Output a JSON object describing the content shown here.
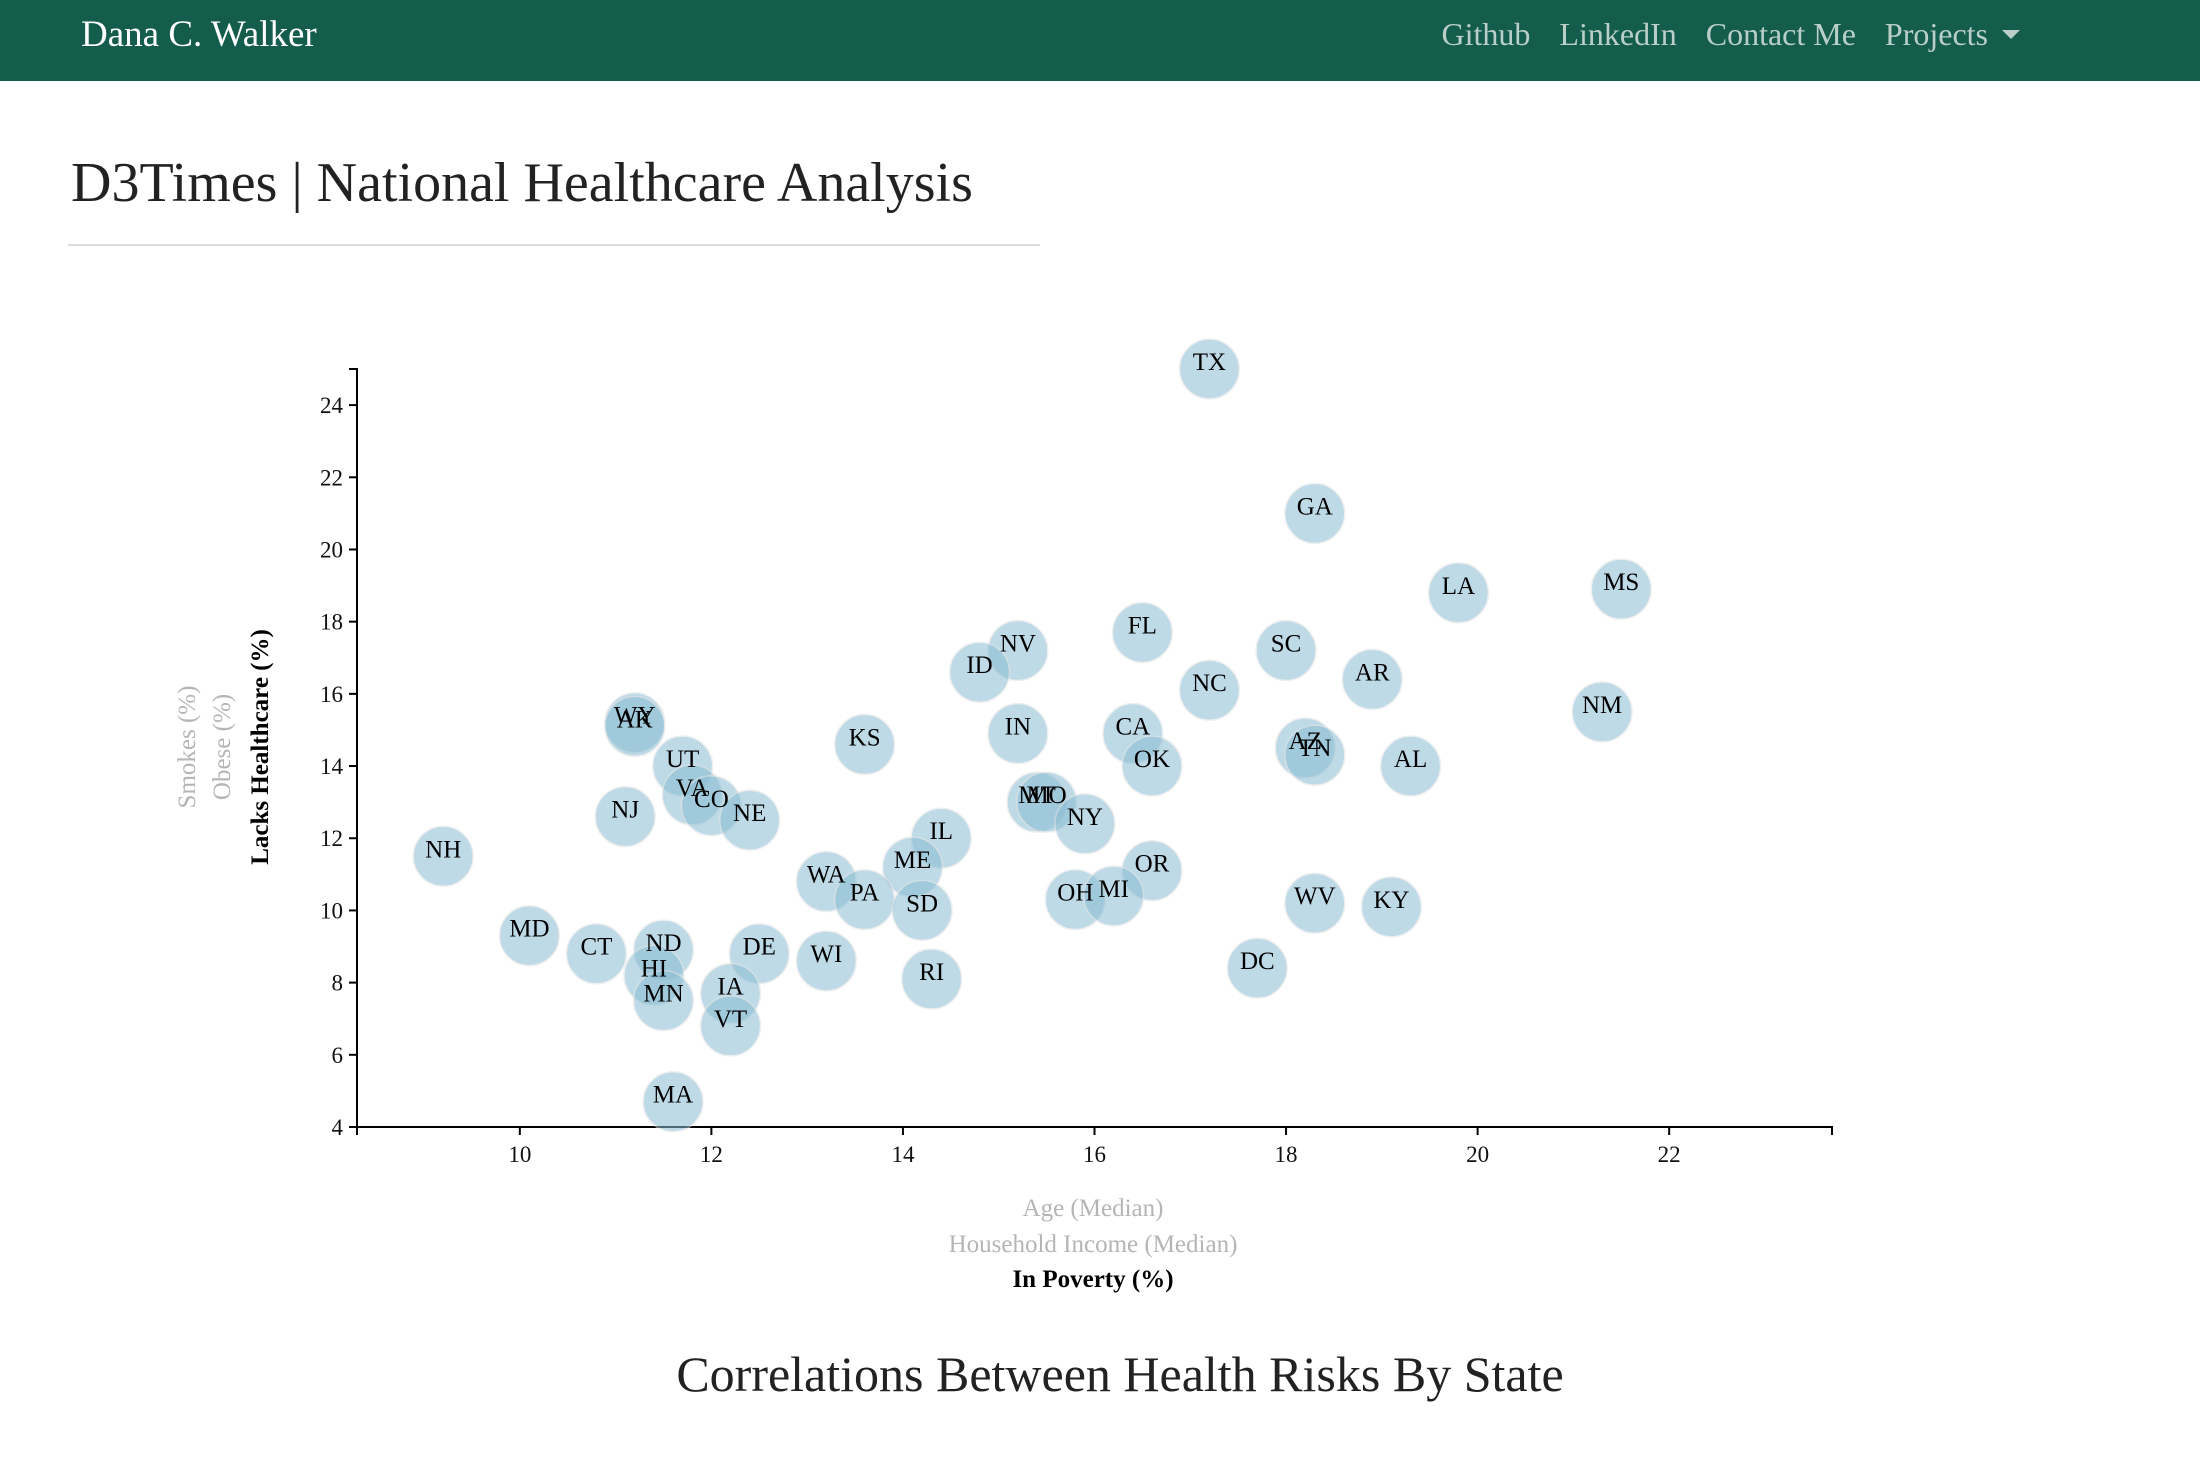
{
  "nav": {
    "brand": "Dana C. Walker",
    "links": [
      "Github",
      "LinkedIn",
      "Contact Me",
      "Projects"
    ]
  },
  "page": {
    "title": "D3Times | National Healthcare Analysis",
    "subtitle": "Correlations Between Health Risks By State"
  },
  "chart_data": {
    "type": "scatter",
    "title": "",
    "xlabels": [
      "Age (Median)",
      "Household Income (Median)",
      "In Poverty (%)"
    ],
    "ylabels": [
      "Smokes (%)",
      "Obese (%)",
      "Lacks Healthcare (%)"
    ],
    "active_xlabel": "In Poverty (%)",
    "active_ylabel": "Lacks Healthcare (%)",
    "xlim": [
      8.3,
      23.7
    ],
    "ylim": [
      4,
      25
    ],
    "xticks": [
      10,
      12,
      14,
      16,
      18,
      20,
      22
    ],
    "yticks": [
      4,
      6,
      8,
      10,
      12,
      14,
      16,
      18,
      20,
      22,
      24
    ],
    "colors": {
      "marker": "#89bdd3",
      "marker_text": "#000000"
    },
    "points": [
      {
        "abbr": "TX",
        "x": 17.2,
        "y": 25.0
      },
      {
        "abbr": "GA",
        "x": 18.3,
        "y": 21.0
      },
      {
        "abbr": "LA",
        "x": 19.8,
        "y": 18.8
      },
      {
        "abbr": "MS",
        "x": 21.5,
        "y": 18.9
      },
      {
        "abbr": "FL",
        "x": 16.5,
        "y": 17.7
      },
      {
        "abbr": "NV",
        "x": 15.2,
        "y": 17.2
      },
      {
        "abbr": "SC",
        "x": 18.0,
        "y": 17.2
      },
      {
        "abbr": "ID",
        "x": 14.8,
        "y": 16.6
      },
      {
        "abbr": "NC",
        "x": 17.2,
        "y": 16.1
      },
      {
        "abbr": "AR",
        "x": 18.9,
        "y": 16.4
      },
      {
        "abbr": "NM",
        "x": 21.3,
        "y": 15.5
      },
      {
        "abbr": "WY",
        "x": 11.2,
        "y": 15.2
      },
      {
        "abbr": "AK",
        "x": 11.2,
        "y": 15.1
      },
      {
        "abbr": "KS",
        "x": 13.6,
        "y": 14.6
      },
      {
        "abbr": "IN",
        "x": 15.2,
        "y": 14.9
      },
      {
        "abbr": "CA",
        "x": 16.4,
        "y": 14.9
      },
      {
        "abbr": "AZ",
        "x": 18.2,
        "y": 14.5
      },
      {
        "abbr": "TN",
        "x": 18.3,
        "y": 14.3
      },
      {
        "abbr": "OK",
        "x": 16.6,
        "y": 14.0
      },
      {
        "abbr": "AL",
        "x": 19.3,
        "y": 14.0
      },
      {
        "abbr": "UT",
        "x": 11.7,
        "y": 14.0
      },
      {
        "abbr": "VA",
        "x": 11.8,
        "y": 13.2
      },
      {
        "abbr": "CO",
        "x": 12.0,
        "y": 12.9
      },
      {
        "abbr": "NE",
        "x": 12.4,
        "y": 12.5
      },
      {
        "abbr": "NJ",
        "x": 11.1,
        "y": 12.6
      },
      {
        "abbr": "MT",
        "x": 15.4,
        "y": 13.0
      },
      {
        "abbr": "MO",
        "x": 15.5,
        "y": 13.0
      },
      {
        "abbr": "NY",
        "x": 15.9,
        "y": 12.4
      },
      {
        "abbr": "IL",
        "x": 14.4,
        "y": 12.0
      },
      {
        "abbr": "NH",
        "x": 9.2,
        "y": 11.5
      },
      {
        "abbr": "ME",
        "x": 14.1,
        "y": 11.2
      },
      {
        "abbr": "OR",
        "x": 16.6,
        "y": 11.1
      },
      {
        "abbr": "WA",
        "x": 13.2,
        "y": 10.8
      },
      {
        "abbr": "PA",
        "x": 13.6,
        "y": 10.3
      },
      {
        "abbr": "SD",
        "x": 14.2,
        "y": 10.0
      },
      {
        "abbr": "OH",
        "x": 15.8,
        "y": 10.3
      },
      {
        "abbr": "MI",
        "x": 16.2,
        "y": 10.4
      },
      {
        "abbr": "WV",
        "x": 18.3,
        "y": 10.2
      },
      {
        "abbr": "KY",
        "x": 19.1,
        "y": 10.1
      },
      {
        "abbr": "MD",
        "x": 10.1,
        "y": 9.3
      },
      {
        "abbr": "CT",
        "x": 10.8,
        "y": 8.8
      },
      {
        "abbr": "ND",
        "x": 11.5,
        "y": 8.9
      },
      {
        "abbr": "DE",
        "x": 12.5,
        "y": 8.8
      },
      {
        "abbr": "WI",
        "x": 13.2,
        "y": 8.6
      },
      {
        "abbr": "HI",
        "x": 11.4,
        "y": 8.2
      },
      {
        "abbr": "RI",
        "x": 14.3,
        "y": 8.1
      },
      {
        "abbr": "DC",
        "x": 17.7,
        "y": 8.4
      },
      {
        "abbr": "IA",
        "x": 12.2,
        "y": 7.7
      },
      {
        "abbr": "MN",
        "x": 11.5,
        "y": 7.5
      },
      {
        "abbr": "VT",
        "x": 12.2,
        "y": 6.8
      },
      {
        "abbr": "MA",
        "x": 11.6,
        "y": 4.7
      }
    ]
  }
}
